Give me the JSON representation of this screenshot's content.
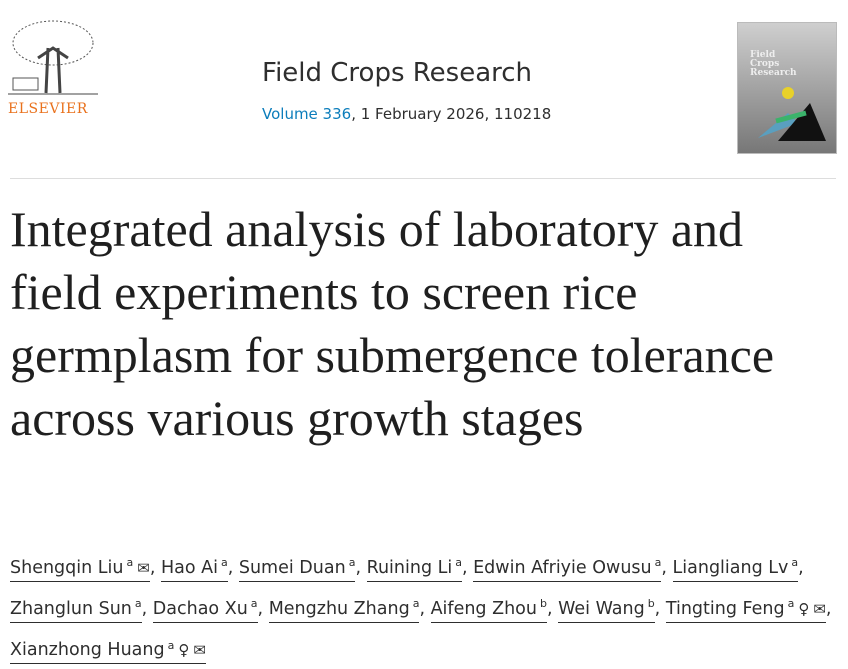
{
  "header": {
    "publisher": "ELSEVIER",
    "journal_title": "Field Crops Research",
    "volume_link": "Volume 336",
    "issue_info": ", 1 February 2026, 110218",
    "cover_title": "Field Crops Research"
  },
  "article": {
    "title": "Integrated analysis of laboratory and field experiments to screen rice germplasm for submergence tolerance across various growth stages",
    "authors": [
      {
        "name": "Shengqin Liu",
        "aff": "a",
        "icons": [
          "envelope-icon"
        ]
      },
      {
        "name": "Hao Ai",
        "aff": "a",
        "icons": []
      },
      {
        "name": "Sumei Duan",
        "aff": "a",
        "icons": []
      },
      {
        "name": "Ruining Li",
        "aff": "a",
        "icons": []
      },
      {
        "name": "Edwin Afriyie Owusu",
        "aff": "a",
        "icons": []
      },
      {
        "name": "Liangliang Lv",
        "aff": "a",
        "icons": []
      },
      {
        "name": "Zhanglun Sun",
        "aff": "a",
        "icons": []
      },
      {
        "name": "Dachao Xu",
        "aff": "a",
        "icons": []
      },
      {
        "name": "Mengzhu Zhang",
        "aff": "a",
        "icons": []
      },
      {
        "name": "Aifeng Zhou",
        "aff": "b",
        "icons": []
      },
      {
        "name": "Wei Wang",
        "aff": "b",
        "icons": []
      },
      {
        "name": "Tingting Feng",
        "aff": "a",
        "icons": [
          "person-icon",
          "envelope-icon"
        ]
      },
      {
        "name": "Xianzhong Huang",
        "aff": "a",
        "icons": [
          "person-icon",
          "envelope-icon"
        ]
      }
    ]
  },
  "colors": {
    "publisher": "#e9711c",
    "link": "#0c7dbb"
  }
}
